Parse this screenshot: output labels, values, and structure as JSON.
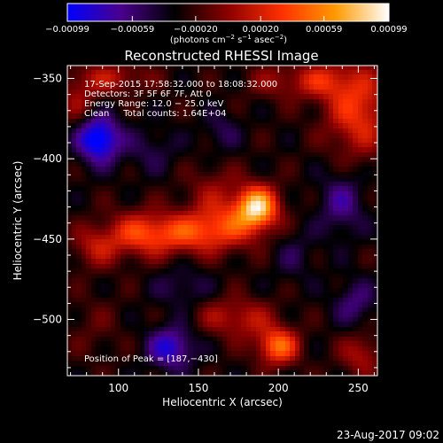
{
  "chart_data": {
    "type": "heatmap",
    "title": "Reconstructed RHESSI Image",
    "xlabel": "Heliocentric X (arcsec)",
    "ylabel": "Heliocentric Y (arcsec)",
    "xlim": [
      68,
      262
    ],
    "ylim": [
      -535,
      -342
    ],
    "x_ticks": [
      100,
      150,
      200,
      250
    ],
    "y_ticks": [
      -350,
      -400,
      -450,
      -500
    ],
    "x_tick_labels": [
      "100",
      "150",
      "200",
      "250"
    ],
    "y_tick_labels": [
      "−350",
      "−400",
      "−450",
      "−500"
    ],
    "colorbar": {
      "range": [
        -0.00099,
        0.00099
      ],
      "ticks": [
        -0.00099,
        -0.00059,
        -0.0002,
        0.0002,
        0.00059,
        0.00099
      ],
      "tick_labels": [
        "−0.00099",
        "−0.00059",
        "−0.00020",
        "0.00020",
        "0.00059",
        "0.00099"
      ],
      "unit_label_parts": [
        "(photons cm",
        "−2",
        " s",
        "−1",
        " asec",
        "−2",
        ")"
      ],
      "colors": [
        "#0000ff",
        "#4a008c",
        "#000000",
        "#8c0000",
        "#ff3000",
        "#ff9a00",
        "#ffffff"
      ]
    },
    "annotations": [
      "17-Sep-2015 17:58:32.000 to 18:08:32.000",
      "Detectors: 3F 5F 6F 7F, Att 0",
      "Energy Range: 12.0 − 25.0 keV",
      "Clean     Total counts: 1.64E+04"
    ],
    "peak_label": "Position of Peak = [187,−430]",
    "peak_position": [
      187,
      -430
    ],
    "sources": [
      {
        "x": 187,
        "y": -430,
        "sx": 9,
        "sy": 9,
        "amp": 0.00099
      },
      {
        "x": 170,
        "y": -440,
        "sx": 18,
        "sy": 11,
        "amp": 0.00045
      },
      {
        "x": 142,
        "y": -447,
        "sx": 20,
        "sy": 9,
        "amp": 0.00052
      },
      {
        "x": 112,
        "y": -447,
        "sx": 14,
        "sy": 10,
        "amp": 0.00046
      },
      {
        "x": 86,
        "y": -455,
        "sx": 10,
        "sy": 9,
        "amp": 0.00036
      },
      {
        "x": 160,
        "y": -418,
        "sx": 12,
        "sy": 10,
        "amp": 0.00022
      },
      {
        "x": 250,
        "y": -370,
        "sx": 14,
        "sy": 20,
        "amp": 0.00058
      },
      {
        "x": 228,
        "y": -352,
        "sx": 12,
        "sy": 8,
        "amp": 0.0004
      },
      {
        "x": 200,
        "y": -352,
        "sx": 14,
        "sy": 8,
        "amp": 0.00026
      },
      {
        "x": 95,
        "y": -350,
        "sx": 18,
        "sy": 7,
        "amp": 0.00035
      },
      {
        "x": 75,
        "y": -365,
        "sx": 9,
        "sy": 10,
        "amp": 0.00026
      },
      {
        "x": 200,
        "y": -517,
        "sx": 9,
        "sy": 8,
        "amp": 0.00076
      },
      {
        "x": 180,
        "y": -500,
        "sx": 13,
        "sy": 9,
        "amp": 0.00036
      },
      {
        "x": 252,
        "y": -522,
        "sx": 9,
        "sy": 9,
        "amp": 0.00036
      },
      {
        "x": 160,
        "y": -498,
        "sx": 10,
        "sy": 8,
        "amp": 0.00018
      },
      {
        "x": 85,
        "y": -505,
        "sx": 12,
        "sy": 14,
        "amp": 0.00012
      },
      {
        "x": 88,
        "y": -388,
        "sx": 9,
        "sy": 10,
        "amp": -0.00085
      },
      {
        "x": 133,
        "y": -518,
        "sx": 10,
        "sy": 9,
        "amp": -0.00058
      },
      {
        "x": 240,
        "y": -428,
        "sx": 10,
        "sy": 14,
        "amp": -0.00036
      },
      {
        "x": 248,
        "y": -490,
        "sx": 9,
        "sy": 10,
        "amp": -0.00032
      },
      {
        "x": 120,
        "y": -395,
        "sx": 12,
        "sy": 10,
        "amp": -0.0002
      },
      {
        "x": 210,
        "y": -460,
        "sx": 10,
        "sy": 12,
        "amp": -0.00018
      },
      {
        "x": 140,
        "y": -480,
        "sx": 12,
        "sy": 9,
        "amp": -0.00022
      },
      {
        "x": 165,
        "y": -383,
        "sx": 8,
        "sy": 9,
        "amp": -0.00022
      }
    ],
    "background_level": -0.00028,
    "ripple_amp": 0.00012,
    "grid": false
  },
  "footer_timestamp": "23-Aug-2017 09:02"
}
